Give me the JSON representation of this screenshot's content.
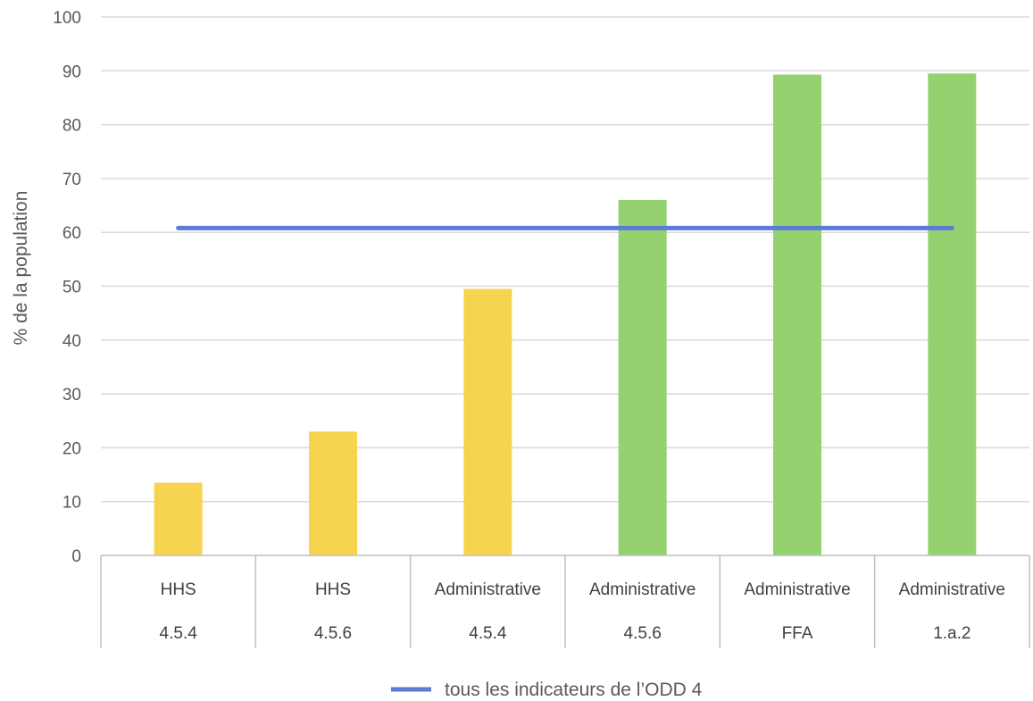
{
  "chart_data": {
    "type": "bar",
    "title": "",
    "xlabel": "",
    "ylabel": "% de la population",
    "ylim": [
      0,
      100
    ],
    "yticks": [
      0,
      10,
      20,
      30,
      40,
      50,
      60,
      70,
      80,
      90,
      100
    ],
    "grid": true,
    "categories": [
      {
        "top": "HHS",
        "bottom": "4.5.4"
      },
      {
        "top": "HHS",
        "bottom": "4.5.6"
      },
      {
        "top": "Administrative",
        "bottom": "4.5.4"
      },
      {
        "top": "Administrative",
        "bottom": "4.5.6"
      },
      {
        "top": "Administrative",
        "bottom": "FFA"
      },
      {
        "top": "Administrative",
        "bottom": "1.a.2"
      }
    ],
    "bars": {
      "values": [
        13.5,
        23,
        49.5,
        66,
        89.3,
        89.5
      ],
      "colors": [
        "#f7d44f",
        "#f7d44f",
        "#f7d44f",
        "#93d26e",
        "#93d26e",
        "#93d26e"
      ]
    },
    "line": {
      "name": "tous les indicateurs de l’ODD 4",
      "value": 60.8,
      "color": "#5b7bd6"
    },
    "legend_position": "bottom"
  }
}
